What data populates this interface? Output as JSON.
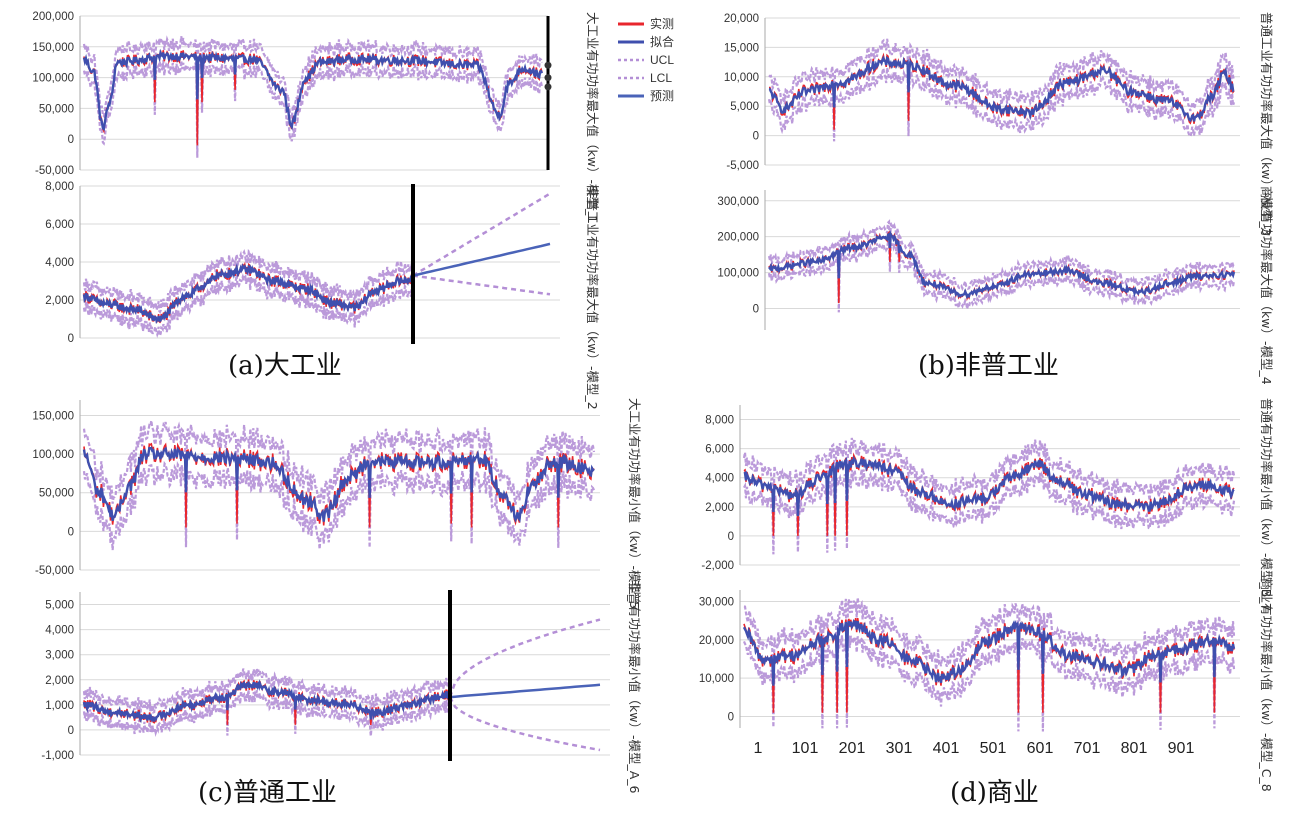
{
  "captions": {
    "a": "(a)大工业",
    "b": "(b)非普工业",
    "c": "(c)普通工业",
    "d": "(d)商业"
  },
  "legend": [
    {
      "label": "实测",
      "color": "#e8262d",
      "dash": false
    },
    {
      "label": "拟合",
      "color": "#3f4fae",
      "dash": false
    },
    {
      "label": "UCL",
      "color": "#b48fd6",
      "dash": true
    },
    {
      "label": "LCL",
      "color": "#b48fd6",
      "dash": true
    },
    {
      "label": "预测",
      "color": "#4a63b8",
      "dash": false
    }
  ],
  "colors": {
    "actual": "#e8262d",
    "fit": "#3f4fae",
    "band": "#b48fd6",
    "forecast": "#4a63b8",
    "grid": "#d9d9d9",
    "cut": "#000000"
  },
  "chart_data": [
    {
      "id": "m1",
      "type": "line",
      "series_label": "大工业有功功率最大值（kw）-模型_1",
      "yticks": [
        "200,000",
        "150,000",
        "100,000",
        "50,000",
        "0",
        "-50,000"
      ],
      "ylim": [
        -50000,
        200000
      ],
      "n_obs": 970,
      "forecast_end": 1000,
      "knots": [
        [
          0,
          130000
        ],
        [
          20,
          110000
        ],
        [
          40,
          20000
        ],
        [
          55,
          60000
        ],
        [
          70,
          125000
        ],
        [
          180,
          135000
        ],
        [
          360,
          130000
        ],
        [
          420,
          80000
        ],
        [
          440,
          25000
        ],
        [
          470,
          100000
        ],
        [
          500,
          125000
        ],
        [
          560,
          130000
        ],
        [
          680,
          128000
        ],
        [
          830,
          120000
        ],
        [
          880,
          40000
        ],
        [
          900,
          90000
        ],
        [
          930,
          115000
        ],
        [
          970,
          105000
        ],
        [
          1000,
          100000
        ]
      ],
      "spikes": [
        [
          240,
          -10000
        ],
        [
          150,
          60000
        ],
        [
          320,
          80000
        ],
        [
          250,
          60000
        ]
      ],
      "band_width": 22000,
      "forecast": false
    },
    {
      "id": "m2",
      "type": "line",
      "series_label": "非普工业有功功率最大值（kw）-模型_2",
      "yticks": [
        "8,000",
        "6,000",
        "4,000",
        "2,000",
        "0"
      ],
      "ylim": [
        0,
        8000
      ],
      "n_obs": 970,
      "forecast_end": 1300,
      "knots": [
        [
          0,
          2200
        ],
        [
          60,
          1800
        ],
        [
          150,
          1500
        ],
        [
          220,
          1000
        ],
        [
          300,
          2200
        ],
        [
          360,
          2800
        ],
        [
          390,
          3300
        ],
        [
          480,
          3600
        ],
        [
          560,
          3000
        ],
        [
          650,
          2600
        ],
        [
          740,
          1800
        ],
        [
          800,
          1600
        ],
        [
          860,
          2500
        ],
        [
          930,
          3000
        ],
        [
          970,
          3100
        ]
      ],
      "spikes": [],
      "band_width": 700,
      "forecast": {
        "end": 4950,
        "ucl": 7600,
        "lcl": 2300,
        "curve": "linear"
      }
    },
    {
      "id": "m3",
      "type": "line",
      "series_label": "普通工业有功功率最大值（kw）-模型_3",
      "yticks": [
        "20,000",
        "15,000",
        "10,000",
        "5,000",
        "0",
        "-5,000"
      ],
      "ylim": [
        -5000,
        20000
      ],
      "n_obs": 1000,
      "forecast_end": 1000,
      "knots": [
        [
          0,
          7500
        ],
        [
          30,
          4500
        ],
        [
          80,
          7500
        ],
        [
          150,
          9000
        ],
        [
          250,
          12500
        ],
        [
          300,
          12000
        ],
        [
          400,
          8500
        ],
        [
          500,
          4500
        ],
        [
          560,
          4000
        ],
        [
          640,
          9000
        ],
        [
          720,
          11000
        ],
        [
          780,
          7500
        ],
        [
          850,
          6000
        ],
        [
          920,
          3000
        ],
        [
          950,
          6500
        ],
        [
          980,
          10500
        ],
        [
          1000,
          8000
        ]
      ],
      "spikes": [
        [
          140,
          1000
        ],
        [
          300,
          2500
        ]
      ],
      "band_width": 2600,
      "forecast": false
    },
    {
      "id": "m4",
      "type": "line",
      "series_label": "商业有功功率最大值（kw）-模型_4",
      "yticks": [
        "300,000",
        "200,000",
        "100,000",
        "0"
      ],
      "ylim": [
        -60000,
        330000
      ],
      "n_obs": 1000,
      "forecast_end": 1000,
      "knots": [
        [
          0,
          110000
        ],
        [
          100,
          130000
        ],
        [
          180,
          170000
        ],
        [
          260,
          200000
        ],
        [
          300,
          150000
        ],
        [
          340,
          70000
        ],
        [
          420,
          40000
        ],
        [
          480,
          60000
        ],
        [
          560,
          95000
        ],
        [
          640,
          105000
        ],
        [
          720,
          70000
        ],
        [
          800,
          45000
        ],
        [
          860,
          70000
        ],
        [
          920,
          90000
        ],
        [
          1000,
          95000
        ]
      ],
      "spikes": [
        [
          150,
          15000
        ],
        [
          260,
          130000
        ],
        [
          280,
          130000
        ]
      ],
      "band_width": 28000,
      "forecast": false
    },
    {
      "id": "m5",
      "type": "line",
      "series_label": "大工业有功功率最小值（kw）-模型_5",
      "yticks": [
        "150,000",
        "100,000",
        "50,000",
        "0",
        "-50,000"
      ],
      "ylim": [
        -50000,
        170000
      ],
      "n_obs": 1000,
      "forecast_end": 1000,
      "knots": [
        [
          0,
          100000
        ],
        [
          30,
          50000
        ],
        [
          60,
          20000
        ],
        [
          90,
          60000
        ],
        [
          120,
          100000
        ],
        [
          300,
          95000
        ],
        [
          360,
          90000
        ],
        [
          440,
          40000
        ],
        [
          470,
          20000
        ],
        [
          520,
          70000
        ],
        [
          560,
          90000
        ],
        [
          700,
          90000
        ],
        [
          780,
          95000
        ],
        [
          820,
          50000
        ],
        [
          850,
          20000
        ],
        [
          880,
          60000
        ],
        [
          920,
          90000
        ],
        [
          1000,
          80000
        ]
      ],
      "spikes": [
        [
          200,
          5000
        ],
        [
          300,
          10000
        ],
        [
          560,
          5000
        ],
        [
          720,
          10000
        ],
        [
          760,
          5000
        ],
        [
          930,
          5000
        ]
      ],
      "band_width": 30000,
      "forecast": false
    },
    {
      "id": "m6",
      "type": "line",
      "series_label": "非普有功功率最小值（kw）-模型_A_6",
      "yticks": [
        "5,000",
        "4,000",
        "3,000",
        "2,000",
        "1,000",
        "0",
        "-1,000"
      ],
      "ylim": [
        -1000,
        5500
      ],
      "n_obs": 970,
      "forecast_end": 1300,
      "knots": [
        [
          0,
          1000
        ],
        [
          80,
          700
        ],
        [
          180,
          500
        ],
        [
          280,
          1000
        ],
        [
          360,
          1300
        ],
        [
          440,
          1800
        ],
        [
          520,
          1500
        ],
        [
          600,
          1200
        ],
        [
          700,
          1000
        ],
        [
          780,
          700
        ],
        [
          860,
          1000
        ],
        [
          940,
          1300
        ],
        [
          970,
          1400
        ]
      ],
      "spikes": [
        [
          380,
          200
        ],
        [
          560,
          200
        ],
        [
          760,
          200
        ]
      ],
      "band_width": 500,
      "forecast": {
        "end": 1800,
        "ucl": 4400,
        "lcl": -800,
        "curve": "sqrt"
      }
    },
    {
      "id": "m7",
      "type": "line",
      "series_label": "普通有功功率最小值（kw）-模型_B_7",
      "yticks": [
        "8,000",
        "6,000",
        "4,000",
        "2,000",
        "0",
        "-2,000"
      ],
      "ylim": [
        -2000,
        9000
      ],
      "n_obs": 1000,
      "forecast_end": 1000,
      "knots": [
        [
          0,
          4000
        ],
        [
          40,
          3500
        ],
        [
          100,
          2800
        ],
        [
          160,
          4000
        ],
        [
          200,
          5000
        ],
        [
          260,
          5000
        ],
        [
          300,
          4500
        ],
        [
          360,
          3000
        ],
        [
          420,
          2200
        ],
        [
          480,
          2500
        ],
        [
          560,
          4200
        ],
        [
          600,
          5000
        ],
        [
          640,
          3800
        ],
        [
          700,
          2800
        ],
        [
          760,
          2200
        ],
        [
          820,
          2000
        ],
        [
          860,
          2400
        ],
        [
          900,
          3200
        ],
        [
          940,
          3500
        ],
        [
          1000,
          3000
        ]
      ],
      "spikes": [
        [
          60,
          0
        ],
        [
          110,
          0
        ],
        [
          170,
          0
        ],
        [
          185,
          0
        ],
        [
          210,
          0
        ]
      ],
      "band_width": 1200,
      "forecast": false
    },
    {
      "id": "m8",
      "type": "line",
      "series_label": "商业有功功率最小值（kw）-模型_C_8",
      "yticks": [
        "30,000",
        "20,000",
        "10,000",
        "0"
      ],
      "ylim": [
        -3000,
        33000
      ],
      "n_obs": 1000,
      "forecast_end": 1000,
      "knots": [
        [
          0,
          22000
        ],
        [
          40,
          15000
        ],
        [
          100,
          16000
        ],
        [
          160,
          20000
        ],
        [
          220,
          24000
        ],
        [
          280,
          20000
        ],
        [
          340,
          15000
        ],
        [
          400,
          10000
        ],
        [
          440,
          12000
        ],
        [
          500,
          20000
        ],
        [
          560,
          24000
        ],
        [
          600,
          22000
        ],
        [
          660,
          16000
        ],
        [
          720,
          14000
        ],
        [
          780,
          12000
        ],
        [
          840,
          16000
        ],
        [
          900,
          18000
        ],
        [
          960,
          20000
        ],
        [
          1000,
          18000
        ]
      ],
      "spikes": [
        [
          60,
          1000
        ],
        [
          160,
          1000
        ],
        [
          190,
          1000
        ],
        [
          210,
          1000
        ],
        [
          560,
          1000
        ],
        [
          610,
          1000
        ],
        [
          850,
          1000
        ],
        [
          960,
          1000
        ]
      ],
      "band_width": 5000,
      "forecast": false
    }
  ],
  "x_axis": {
    "ticks": [
      "1",
      "101",
      "201",
      "301",
      "401",
      "501",
      "601",
      "701",
      "801",
      "901"
    ],
    "values": [
      1,
      101,
      201,
      301,
      401,
      501,
      601,
      701,
      801,
      901
    ],
    "domain_max": 1000
  }
}
